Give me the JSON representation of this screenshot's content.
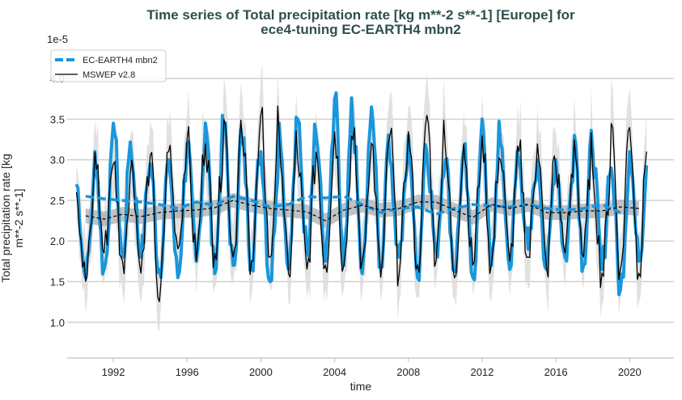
{
  "chart_data": {
    "type": "line",
    "title_line1": "Time series of Total precipitation rate [kg m**-2 s**-1] [Europe] for",
    "title_line2": "ece4-tuning EC-EARTH4 mbn2",
    "xlabel": "time",
    "ylabel_line1": "Total precipitation rate [kg",
    "ylabel_line2": "m**-2 s**-1]",
    "y_scale_label": "1e-5",
    "xlim": [
      1988.4,
      2022.4
    ],
    "ylim": [
      0.56,
      4.35
    ],
    "x_ticks": [
      "1992",
      "1996",
      "2000",
      "2004",
      "2008",
      "2012",
      "2016",
      "2020"
    ],
    "y_ticks": [
      "1.0",
      "1.5",
      "2.0",
      "2.5",
      "3.0",
      "3.5",
      "4.0"
    ],
    "grid": "horizontal",
    "legend_placement": "top-left",
    "years": [
      1990,
      1991,
      1992,
      1993,
      1994,
      1995,
      1996,
      1997,
      1998,
      1999,
      2000,
      2001,
      2002,
      2003,
      2004,
      2005,
      2006,
      2007,
      2008,
      2009,
      2010,
      2011,
      2012,
      2013,
      2014,
      2015,
      2016,
      2017,
      2018,
      2019,
      2020
    ],
    "series": [
      {
        "name": "EC-EARTH4 mbn2",
        "color": "#1a96dc",
        "winter_peak": [
          2.7,
          3.1,
          3.45,
          3.0,
          2.95,
          3.0,
          3.2,
          3.45,
          3.4,
          3.2,
          3.1,
          3.45,
          3.5,
          3.3,
          3.75,
          3.4,
          3.65,
          3.0,
          3.3,
          3.1,
          3.0,
          3.1,
          3.5,
          3.2,
          3.0,
          3.0,
          3.0,
          3.3,
          3.1,
          2.9,
          3.1
        ],
        "summer_trough": [
          1.55,
          1.65,
          1.8,
          1.8,
          1.65,
          1.55,
          1.75,
          1.6,
          1.7,
          1.75,
          1.5,
          1.65,
          1.9,
          1.75,
          1.7,
          1.6,
          1.7,
          1.8,
          1.55,
          1.9,
          1.65,
          1.55,
          1.7,
          1.65,
          1.9,
          1.65,
          1.8,
          1.7,
          1.65,
          1.4,
          1.75
        ],
        "annual_mean": [
          2.55,
          2.52,
          2.5,
          2.48,
          2.45,
          2.4,
          2.48,
          2.44,
          2.55,
          2.5,
          2.42,
          2.45,
          2.55,
          2.53,
          2.55,
          2.45,
          2.35,
          2.4,
          2.42,
          2.33,
          2.4,
          2.45,
          2.43,
          2.42,
          2.45,
          2.4,
          2.38,
          2.4,
          2.45,
          2.35,
          null
        ]
      },
      {
        "name": "MSWEP v2.8",
        "color": "#000000",
        "winter_peak": [
          2.6,
          3.1,
          2.95,
          3.0,
          3.05,
          3.1,
          3.25,
          3.2,
          3.5,
          3.25,
          3.55,
          3.3,
          3.0,
          3.1,
          3.35,
          3.25,
          3.2,
          3.3,
          3.35,
          3.55,
          3.15,
          3.2,
          3.3,
          3.0,
          3.1,
          3.2,
          2.9,
          3.25,
          2.85,
          3.45,
          3.4
        ],
        "summer_trough": [
          1.5,
          1.85,
          1.75,
          1.6,
          1.25,
          1.9,
          1.75,
          1.85,
          1.8,
          1.75,
          1.8,
          1.6,
          1.65,
          1.7,
          1.7,
          1.75,
          1.55,
          1.6,
          1.7,
          1.75,
          1.55,
          1.7,
          1.7,
          1.75,
          1.8,
          1.65,
          1.85,
          1.8,
          1.6,
          1.65,
          1.6
        ],
        "annual_mean": [
          2.31,
          2.27,
          2.33,
          2.3,
          2.35,
          2.37,
          2.38,
          2.41,
          2.5,
          2.44,
          2.4,
          2.38,
          2.36,
          2.25,
          2.38,
          2.44,
          2.38,
          2.4,
          2.48,
          2.48,
          2.38,
          2.29,
          2.45,
          2.4,
          2.45,
          2.35,
          2.35,
          2.37,
          2.37,
          2.42,
          2.4
        ]
      }
    ]
  }
}
